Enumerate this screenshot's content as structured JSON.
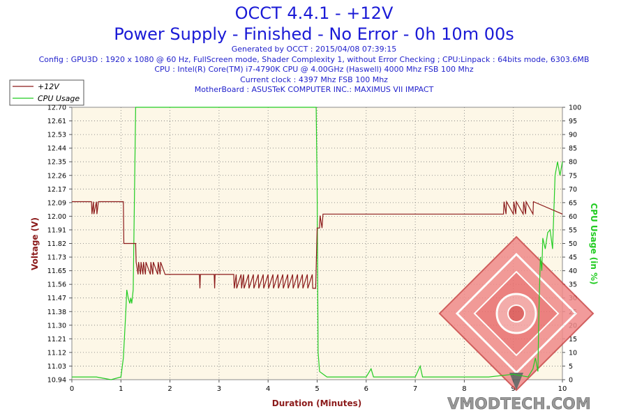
{
  "header": {
    "title": "OCCT 4.4.1 - +12V",
    "subtitle": "Power Supply - Finished - No Error - 0h 10m 00s",
    "lines": [
      "Generated by OCCT : 2015/04/08 07:39:15",
      "Config : GPU3D : 1920 x 1080 @ 60 Hz, FullScreen mode, Shader Complexity 1, without Error Checking ; CPU:Linpack : 64bits mode, 6303.6MB",
      "CPU : Intel(R) Core(TM) i7-4790K CPU @ 4.00GHz (Haswell) 4000 Mhz FSB 100 Mhz",
      "Current clock : 4397 Mhz FSB 100 Mhz",
      "MotherBoard : ASUSTeK COMPUTER INC.: MAXIMUS VII IMPACT"
    ]
  },
  "watermark": "VMODTECH.COM",
  "colors": {
    "voltage": "#8b1a1a",
    "cpu": "#22cc22",
    "plot_bg": "#fdf7e7",
    "text_blue": "#1a1ad6"
  },
  "chart_data": {
    "type": "line",
    "xlabel": "Duration (Minutes)",
    "ylabel": "Voltage (V)",
    "y2label": "CPU Usage (in %)",
    "x_ticks": [
      "0",
      "1",
      "2",
      "3",
      "4",
      "5",
      "6",
      "7",
      "8",
      "9",
      "10"
    ],
    "y_ticks": [
      "10.94",
      "11.03",
      "11.12",
      "11.21",
      "11.30",
      "11.38",
      "11.47",
      "11.56",
      "11.65",
      "11.73",
      "11.82",
      "11.91",
      "12.00",
      "12.09",
      "12.17",
      "12.26",
      "12.35",
      "12.44",
      "12.53",
      "12.61",
      "12.70"
    ],
    "y2_ticks": [
      "0",
      "5",
      "10",
      "15",
      "20",
      "25",
      "30",
      "35",
      "40",
      "45",
      "50",
      "55",
      "60",
      "65",
      "70",
      "75",
      "80",
      "85",
      "90",
      "95",
      "100"
    ],
    "xlim": [
      0,
      10
    ],
    "ylim": [
      10.94,
      12.7
    ],
    "y2lim": [
      0,
      100
    ],
    "grid": true,
    "legend_position": "top-left",
    "series": [
      {
        "name": "+12V",
        "axis": "left",
        "x": [
          0,
          0.4,
          0.41,
          0.44,
          0.45,
          0.5,
          0.51,
          0.54,
          0.55,
          1.05,
          1.06,
          1.3,
          1.31,
          1.35,
          1.36,
          1.4,
          1.41,
          1.45,
          1.46,
          1.5,
          1.51,
          1.6,
          1.61,
          1.65,
          1.66,
          1.75,
          1.76,
          1.8,
          1.81,
          1.9,
          1.91,
          2.6,
          2.61,
          2.62,
          2.9,
          2.91,
          2.92,
          3.3,
          3.31,
          3.35,
          3.36,
          3.45,
          3.46,
          3.5,
          3.51,
          3.6,
          3.61,
          3.7,
          3.71,
          3.8,
          3.81,
          3.9,
          3.91,
          4.0,
          4.01,
          4.1,
          4.11,
          4.2,
          4.21,
          4.3,
          4.31,
          4.4,
          4.41,
          4.5,
          4.51,
          4.6,
          4.61,
          4.7,
          4.71,
          4.8,
          4.81,
          4.9,
          4.91,
          4.97,
          5.0,
          5.05,
          5.06,
          5.1,
          5.12,
          8.8,
          8.81,
          8.85,
          8.86,
          9.0,
          9.01,
          9.05,
          9.06,
          9.2,
          9.21,
          9.25,
          9.26,
          9.4,
          9.41,
          10.0
        ],
        "values": [
          12.09,
          12.09,
          12.01,
          12.09,
          12.01,
          12.09,
          12.01,
          12.09,
          12.09,
          12.09,
          11.82,
          11.82,
          11.7,
          11.62,
          11.7,
          11.62,
          11.7,
          11.62,
          11.7,
          11.62,
          11.7,
          11.62,
          11.7,
          11.62,
          11.7,
          11.62,
          11.7,
          11.62,
          11.7,
          11.62,
          11.62,
          11.62,
          11.53,
          11.62,
          11.62,
          11.53,
          11.62,
          11.62,
          11.53,
          11.62,
          11.53,
          11.62,
          11.53,
          11.62,
          11.53,
          11.62,
          11.53,
          11.62,
          11.53,
          11.62,
          11.53,
          11.62,
          11.53,
          11.62,
          11.53,
          11.62,
          11.53,
          11.62,
          11.53,
          11.62,
          11.53,
          11.62,
          11.53,
          11.62,
          11.53,
          11.62,
          11.53,
          11.62,
          11.53,
          11.62,
          11.53,
          11.62,
          11.53,
          11.53,
          11.92,
          11.92,
          12.0,
          11.92,
          12.01,
          12.01,
          12.09,
          12.01,
          12.09,
          12.01,
          12.09,
          12.01,
          12.09,
          12.01,
          12.09,
          12.01,
          12.09,
          12.01,
          12.09,
          12.01
        ]
      },
      {
        "name": "CPU Usage",
        "axis": "right",
        "x": [
          0,
          0.5,
          0.8,
          1.0,
          1.05,
          1.1,
          1.12,
          1.15,
          1.18,
          1.2,
          1.22,
          1.25,
          1.3,
          1.32,
          4.98,
          5.0,
          5.02,
          5.05,
          5.2,
          6.0,
          6.1,
          6.15,
          6.2,
          7.0,
          7.1,
          7.15,
          7.2,
          8.0,
          8.5,
          9.0,
          9.3,
          9.4,
          9.45,
          9.5,
          9.52,
          9.55,
          9.58,
          9.6,
          9.65,
          9.7,
          9.75,
          9.8,
          9.85,
          9.9,
          9.95,
          10.0
        ],
        "values": [
          1,
          1,
          0,
          1,
          8,
          25,
          33,
          30,
          28,
          30,
          28,
          33,
          100,
          100,
          100,
          70,
          10,
          3,
          1,
          1,
          4,
          1,
          1,
          1,
          5,
          1,
          1,
          1,
          1,
          2,
          1,
          4,
          8,
          3,
          25,
          45,
          40,
          52,
          48,
          54,
          55,
          48,
          75,
          80,
          75,
          80
        ]
      }
    ]
  }
}
